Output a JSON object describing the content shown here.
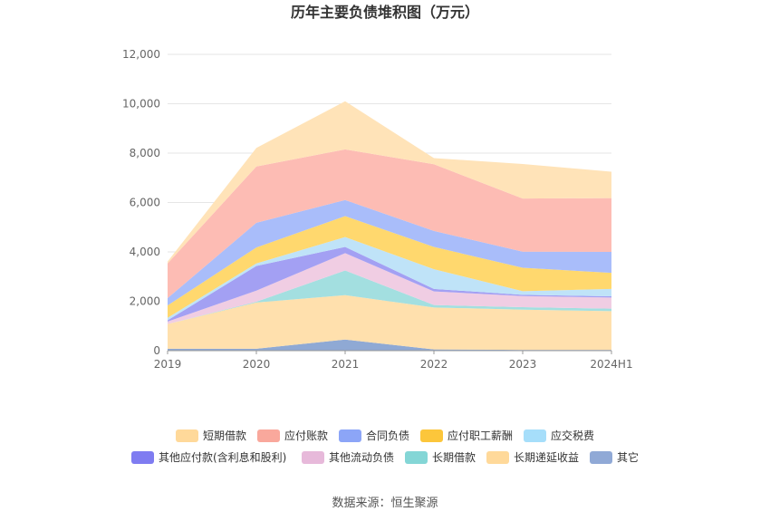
{
  "title": "历年主要负债堆积图（万元）",
  "source": "数据来源：恒生聚源",
  "chart_data": {
    "type": "area",
    "stacked": true,
    "title": "历年主要负债堆积图（万元）",
    "categories": [
      "2019",
      "2020",
      "2021",
      "2022",
      "2023",
      "2024H1"
    ],
    "y_ticks": [
      "0",
      "2,000",
      "4,000",
      "6,000",
      "8,000",
      "10,000",
      "12,000"
    ],
    "ylim": [
      0,
      12000
    ],
    "grid": true,
    "legend_position": "bottom",
    "series": [
      {
        "name": "其它",
        "color": "#8fa9d4",
        "values": [
          80,
          80,
          450,
          50,
          30,
          30
        ]
      },
      {
        "name": "长期递延收益",
        "color": "#ffe0ad",
        "values": [
          1000,
          1870,
          1800,
          1700,
          1630,
          1570
        ]
      },
      {
        "name": "长期借款",
        "color": "#a3dfe0",
        "values": [
          0,
          30,
          1000,
          100,
          100,
          100
        ]
      },
      {
        "name": "其他流动负债",
        "color": "#f0cde3",
        "values": [
          100,
          450,
          700,
          550,
          450,
          450
        ]
      },
      {
        "name": "其他应付款(含利息和股利)",
        "color": "#a3a0f3",
        "values": [
          50,
          1000,
          250,
          100,
          50,
          50
        ]
      },
      {
        "name": "应交税费",
        "color": "#bfe3f8",
        "values": [
          100,
          100,
          400,
          800,
          150,
          300
        ]
      },
      {
        "name": "应付职工薪酬",
        "color": "#ffd86e",
        "values": [
          500,
          650,
          850,
          900,
          950,
          650
        ]
      },
      {
        "name": "合同负债",
        "color": "#a9bdfa",
        "values": [
          300,
          1000,
          650,
          650,
          650,
          850
        ]
      },
      {
        "name": "应付账款",
        "color": "#fdbcb4",
        "values": [
          1400,
          2280,
          2050,
          2700,
          2150,
          2180
        ]
      },
      {
        "name": "短期借款",
        "color": "#ffe3b8",
        "values": [
          80,
          750,
          1950,
          250,
          1400,
          1070
        ]
      }
    ]
  },
  "legend": {
    "row1": [
      {
        "label": "短期借款",
        "color": "#ffd99a"
      },
      {
        "label": "应付账款",
        "color": "#f9a89c"
      },
      {
        "label": "合同负债",
        "color": "#8ca5f7"
      },
      {
        "label": "应付职工薪酬",
        "color": "#fcc63b"
      },
      {
        "label": "应交税费",
        "color": "#a6defa"
      }
    ],
    "row2": [
      {
        "label": "其他应付款(含利息和股利)",
        "color": "#7f7cf1"
      },
      {
        "label": "其他流动负债",
        "color": "#e7b9da"
      },
      {
        "label": "长期借款",
        "color": "#84d6d6"
      },
      {
        "label": "长期递延收益",
        "color": "#ffd99a"
      },
      {
        "label": "其它",
        "color": "#90a9d6"
      }
    ]
  }
}
